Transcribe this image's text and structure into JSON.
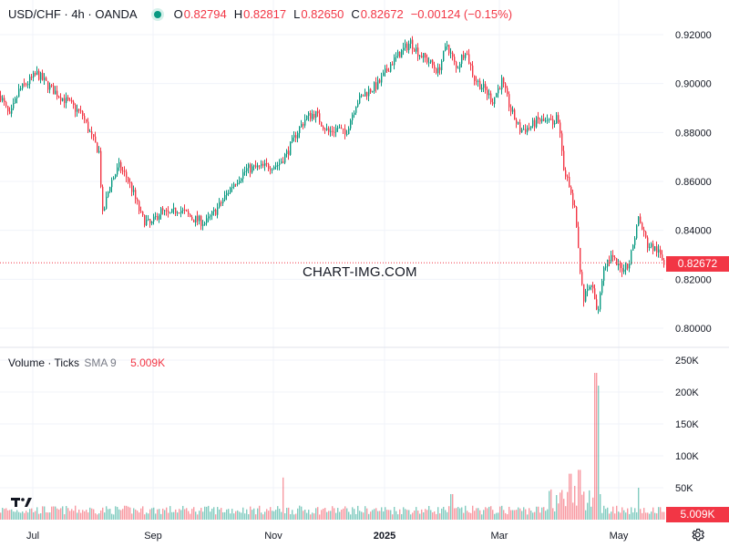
{
  "header": {
    "symbol_title": "USD/CHF · 4h · OANDA",
    "open_label": "O",
    "open_value": "0.82794",
    "high_label": "H",
    "high_value": "0.82817",
    "low_label": "L",
    "low_value": "0.82650",
    "close_label": "C",
    "close_value": "0.82672",
    "change_value": "−0.00124 (−0.15%)"
  },
  "volume_header": {
    "label": "Volume · Ticks",
    "sma_label": "SMA 9",
    "value": "5.009K"
  },
  "watermark": "CHART-IMG.COM",
  "colors": {
    "up": "#089981",
    "down": "#f23645",
    "grid": "#f0f3fa",
    "text": "#131722"
  },
  "icons": {
    "logo": "tradingview-logo-icon",
    "settings": "gear-icon"
  },
  "chart_data": {
    "type": "candlestick",
    "symbol": "USD/CHF",
    "interval": "4h",
    "source": "OANDA",
    "price_axis_ticks": [
      "0.92000",
      "0.90000",
      "0.88000",
      "0.86000",
      "0.84000",
      "0.82000",
      "0.80000"
    ],
    "price_range": [
      0.796,
      0.929
    ],
    "last_price": "0.82672",
    "volume_axis_ticks": [
      "250K",
      "200K",
      "150K",
      "100K",
      "50K"
    ],
    "volume_range": [
      0,
      260000
    ],
    "last_volume": "5.009K",
    "time_axis_ticks": [
      "Jul",
      "Sep",
      "Nov",
      "2025",
      "Mar",
      "May"
    ],
    "close_path": [
      [
        0,
        0.895
      ],
      [
        10,
        0.886
      ],
      [
        20,
        0.897
      ],
      [
        40,
        0.904
      ],
      [
        55,
        0.898
      ],
      [
        75,
        0.892
      ],
      [
        90,
        0.887
      ],
      [
        100,
        0.878
      ],
      [
        108,
        0.872
      ],
      [
        112,
        0.846
      ],
      [
        120,
        0.859
      ],
      [
        130,
        0.866
      ],
      [
        138,
        0.862
      ],
      [
        145,
        0.856
      ],
      [
        155,
        0.845
      ],
      [
        165,
        0.842
      ],
      [
        175,
        0.848
      ],
      [
        185,
        0.846
      ],
      [
        195,
        0.849
      ],
      [
        210,
        0.845
      ],
      [
        225,
        0.843
      ],
      [
        240,
        0.85
      ],
      [
        255,
        0.859
      ],
      [
        270,
        0.865
      ],
      [
        290,
        0.866
      ],
      [
        305,
        0.867
      ],
      [
        315,
        0.872
      ],
      [
        325,
        0.88
      ],
      [
        335,
        0.886
      ],
      [
        345,
        0.888
      ],
      [
        352,
        0.884
      ],
      [
        360,
        0.88
      ],
      [
        370,
        0.882
      ],
      [
        378,
        0.879
      ],
      [
        390,
        0.892
      ],
      [
        400,
        0.896
      ],
      [
        415,
        0.9
      ],
      [
        428,
        0.908
      ],
      [
        440,
        0.913
      ],
      [
        450,
        0.917
      ],
      [
        460,
        0.912
      ],
      [
        470,
        0.909
      ],
      [
        480,
        0.905
      ],
      [
        490,
        0.916
      ],
      [
        500,
        0.906
      ],
      [
        510,
        0.914
      ],
      [
        520,
        0.902
      ],
      [
        530,
        0.898
      ],
      [
        540,
        0.893
      ],
      [
        550,
        0.901
      ],
      [
        560,
        0.889
      ],
      [
        570,
        0.881
      ],
      [
        580,
        0.882
      ],
      [
        590,
        0.885
      ],
      [
        600,
        0.884
      ],
      [
        612,
        0.886
      ],
      [
        618,
        0.866
      ],
      [
        625,
        0.856
      ],
      [
        630,
        0.848
      ],
      [
        635,
        0.828
      ],
      [
        640,
        0.812
      ],
      [
        648,
        0.818
      ],
      [
        655,
        0.806
      ],
      [
        662,
        0.826
      ],
      [
        670,
        0.829
      ],
      [
        680,
        0.824
      ],
      [
        690,
        0.827
      ],
      [
        700,
        0.845
      ],
      [
        710,
        0.834
      ],
      [
        720,
        0.832
      ],
      [
        728,
        0.8267
      ]
    ],
    "volume_spikes": [
      [
        653,
        230000
      ],
      [
        655,
        210000
      ],
      [
        635,
        78000
      ],
      [
        625,
        72000
      ],
      [
        310,
        66000
      ],
      [
        700,
        50000
      ],
      [
        495,
        40000
      ]
    ]
  }
}
